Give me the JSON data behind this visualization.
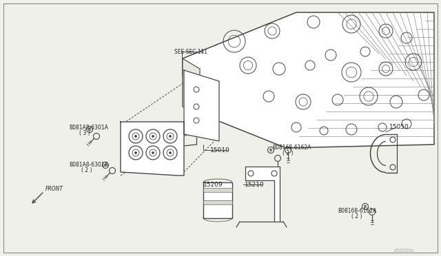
{
  "bg_color": "#f0f0eb",
  "border_color": "#888888",
  "line_color": "#444444",
  "text_color": "#222222",
  "watermark": "s50000s",
  "labels": {
    "see_sec": "SEE SEC.111",
    "part_15010": "15010",
    "part_15209": "15209",
    "part_15210": "15210",
    "part_15050": "15050",
    "bolt_a1_label": "B081A8-6301A",
    "bolt_a1_qty": "( 3 )",
    "bolt_a2_label": "B081A8-6301A",
    "bolt_a2_qty": "( 2 )",
    "bolt_b1_label": "B08168-6162A",
    "bolt_b1_qty": "( 2 )",
    "bolt_b2_label": "B08168-6162A",
    "bolt_b2_qty": "( 2 )",
    "front": "FRONT"
  },
  "border": [
    5,
    5,
    635,
    367
  ]
}
